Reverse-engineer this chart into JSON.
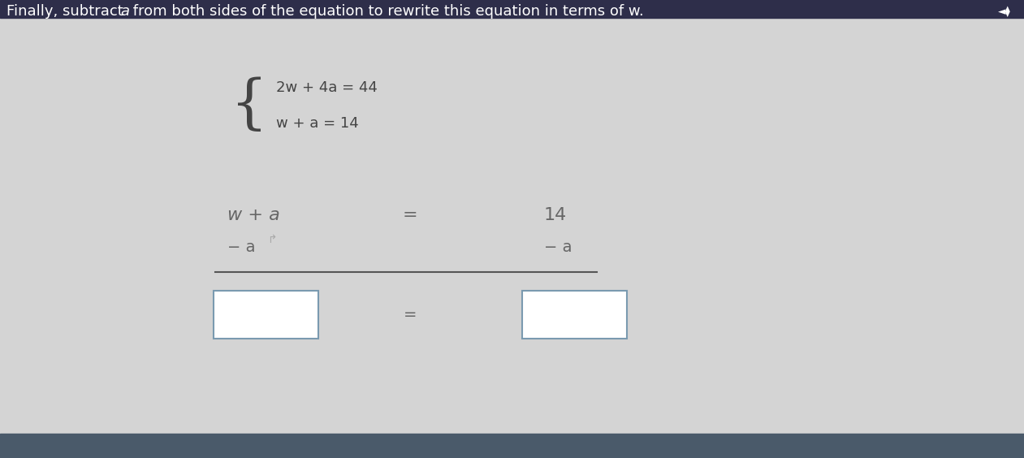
{
  "background_color": "#d4d4d4",
  "header_bg": "#2e2e4a",
  "title_color": "#111111",
  "title_fontsize": 13,
  "eq_color": "#444444",
  "eq_fontsize": 13,
  "work_color": "#666666",
  "work_fontsize": 14,
  "box_border": "#7a9ab0",
  "line_color": "#555555",
  "bottom_bar_color": "#4a5a6a",
  "equation1": "2w + 4a = 44",
  "equation2": "w + a = 14",
  "work_line1_left": "w + a",
  "work_line1_eq": "=",
  "work_line1_right": "14",
  "work_line2_left": "− a",
  "work_line2_right": "− a",
  "title_part1": "Finally, subtract ",
  "title_italic": "a",
  "title_part2": " from both sides of the equation to rewrite this equation in terms of w."
}
